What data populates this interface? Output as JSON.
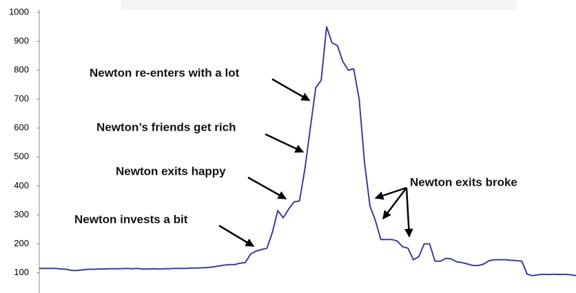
{
  "chart_data": {
    "type": "line",
    "color": "#3b3b9e",
    "annotations": [
      "Newton re-enters with a lot",
      "Newton’s friends get rich",
      "Newton exits happy",
      "Newton invests a bit",
      "Newton exits broke"
    ],
    "values": [
      115,
      115,
      115,
      115,
      113,
      112,
      108,
      108,
      110,
      112,
      112,
      113,
      113,
      114,
      114,
      114,
      115,
      114,
      115,
      113,
      113,
      114,
      113,
      114,
      114,
      115,
      115,
      115,
      116,
      116,
      117,
      118,
      120,
      123,
      126,
      128,
      128,
      133,
      135,
      165,
      175,
      180,
      185,
      240,
      315,
      290,
      320,
      345,
      348,
      460,
      600,
      740,
      765,
      950,
      895,
      885,
      830,
      800,
      805,
      700,
      480,
      330,
      280,
      215,
      215,
      215,
      210,
      190,
      185,
      145,
      155,
      200,
      200,
      140,
      140,
      150,
      148,
      138,
      135,
      130,
      125,
      125,
      130,
      142,
      145,
      145,
      145,
      143,
      142,
      140,
      95,
      90,
      93,
      95,
      94,
      95,
      94,
      95,
      93,
      90
    ],
    "ylim": [
      30,
      1000
    ],
    "yticks": [
      100,
      200,
      300,
      400,
      500,
      600,
      700,
      800,
      900,
      1000
    ]
  }
}
